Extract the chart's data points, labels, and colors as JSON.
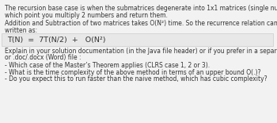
{
  "background_color": "#f2f2f2",
  "box_facecolor": "#e8e8e8",
  "box_edgecolor": "#cccccc",
  "text_color": "#333333",
  "font_size": 5.5,
  "font_size_box": 6.8,
  "para1_l1": "The recursion base case is when the submatrices degenerate into 1x1 matrices (single numbers) at",
  "para1_l2": "which point you multiply 2 numbers and return them.",
  "para2_l1": "Addition and Subtraction of two matrices takes O(N²) time. So the recurrence relation can be",
  "para2_l2": "written as:",
  "box_text": "T(N)  =  7T(N/2)  +   O(N²)",
  "para3_l1": "Explain in your solution documentation (in the Java file header) or if you prefer in a separate .txt (text)",
  "para3_l2": "or .doc/.docx (Word) file :",
  "bullet1": "- Which case of the Master’s Theorem applies (CLRS case 1, 2 or 3).",
  "bullet2": "- What is the time complexity of the above method in terms of an upper bound O(.)?",
  "bullet3": "- Do you expect this to run faster than the naive method, which has cubic complexity?"
}
